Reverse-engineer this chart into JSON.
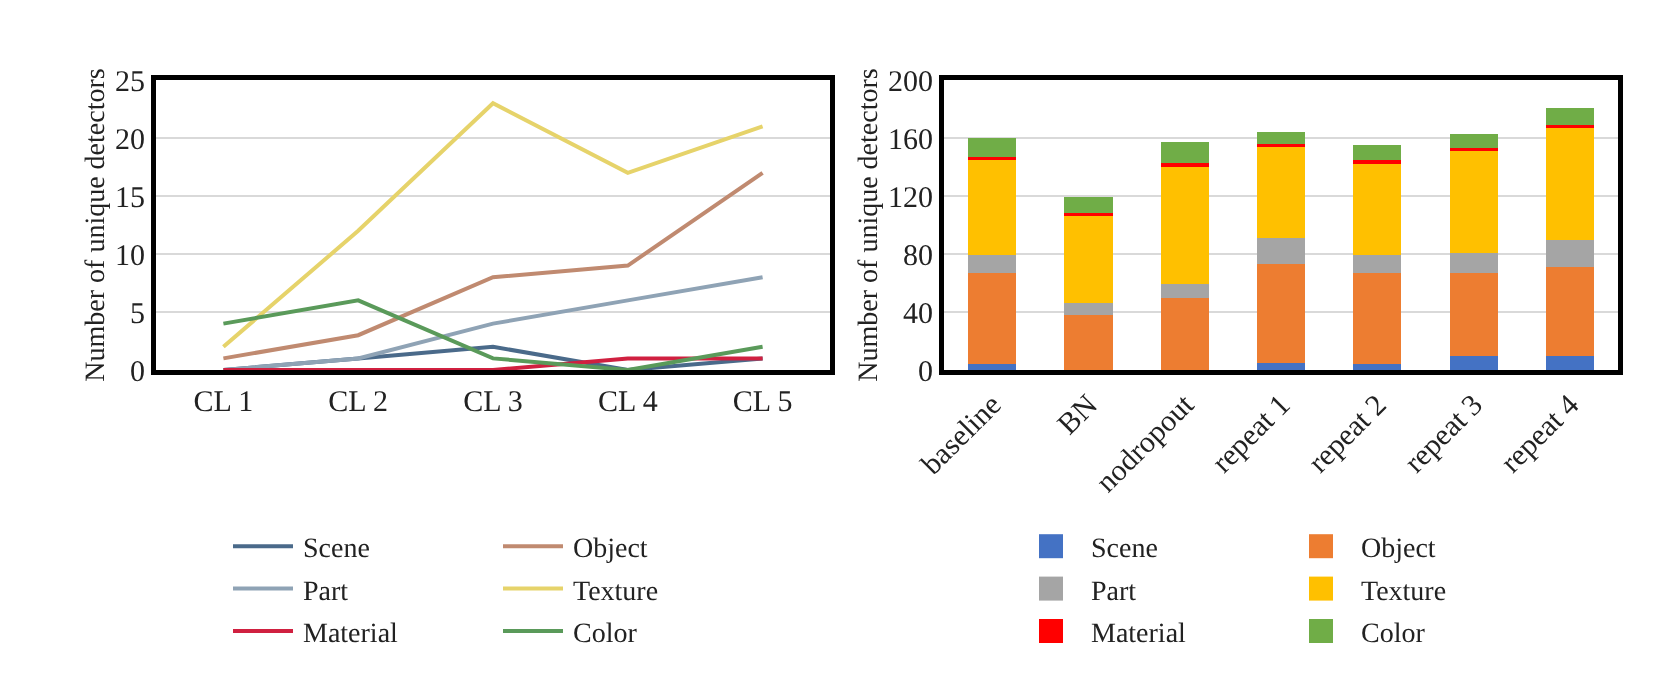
{
  "chart_data": [
    {
      "type": "line",
      "ylabel": "Number of unique detectors",
      "categories": [
        "CL 1",
        "CL 2",
        "CL 3",
        "CL 4",
        "CL 5"
      ],
      "ylim": [
        0,
        25
      ],
      "yticks": [
        0,
        5,
        10,
        15,
        20,
        25
      ],
      "grid": "y",
      "legend": "bottom",
      "series": [
        {
          "name": "Scene",
          "color": "#4a6a8a",
          "values": [
            0,
            1,
            2,
            0,
            1
          ]
        },
        {
          "name": "Object",
          "color": "#c08a70",
          "values": [
            1,
            3,
            8,
            9,
            17
          ]
        },
        {
          "name": "Part",
          "color": "#8fa3b5",
          "values": [
            0,
            1,
            4,
            6,
            8
          ]
        },
        {
          "name": "Texture",
          "color": "#e6d36a",
          "values": [
            2,
            12,
            23,
            17,
            21
          ]
        },
        {
          "name": "Material",
          "color": "#d02040",
          "values": [
            0,
            0,
            0,
            1,
            1
          ]
        },
        {
          "name": "Color",
          "color": "#5a9a5a",
          "values": [
            4,
            6,
            1,
            0,
            2
          ]
        }
      ]
    },
    {
      "type": "bar",
      "stacked": true,
      "ylabel": "Number of unique detectors",
      "categories": [
        "baseline",
        "BN",
        "nodropout",
        "repeat 1",
        "repeat 2",
        "repeat 3",
        "repeat 4"
      ],
      "ylim": [
        0,
        200
      ],
      "yticks": [
        0,
        40,
        80,
        120,
        160,
        200
      ],
      "grid": "y",
      "legend": "bottom",
      "series": [
        {
          "name": "Scene",
          "color": "#4472c4",
          "values": [
            4,
            0,
            0,
            5,
            4,
            10,
            10
          ]
        },
        {
          "name": "Object",
          "color": "#ed7d31",
          "values": [
            63,
            38,
            50,
            68,
            63,
            57,
            61
          ]
        },
        {
          "name": "Part",
          "color": "#a5a5a5",
          "values": [
            12,
            8,
            9,
            18,
            12,
            14,
            19
          ]
        },
        {
          "name": "Texture",
          "color": "#ffc000",
          "values": [
            66,
            60,
            81,
            63,
            63,
            70,
            77
          ]
        },
        {
          "name": "Material",
          "color": "#ff0000",
          "values": [
            2,
            2,
            3,
            2,
            3,
            2,
            2
          ]
        },
        {
          "name": "Color",
          "color": "#70ad47",
          "values": [
            13,
            11,
            14,
            8,
            10,
            10,
            12
          ]
        }
      ]
    }
  ]
}
